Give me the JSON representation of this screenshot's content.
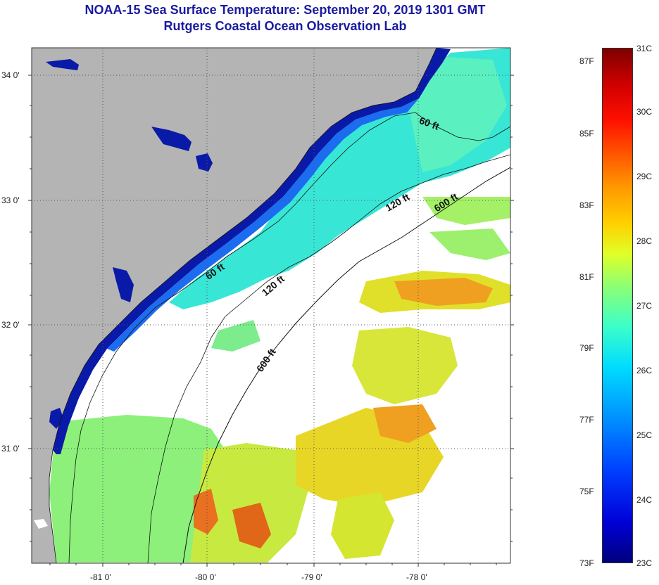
{
  "title": {
    "line1": "NOAA-15 Sea Surface Temperature:  September 20, 2019 1301 GMT",
    "line2": "Rutgers Coastal Ocean Observation Lab"
  },
  "map": {
    "lat_labels": [
      "34 0'",
      "33 0'",
      "32 0'",
      "31 0'"
    ],
    "lon_labels": [
      "-81 0'",
      "-80 0'",
      "-79 0'",
      "-78 0'"
    ],
    "contour_labels": [
      "60 ft",
      "60 ft",
      "120 ft",
      "120 ft",
      "600 ft",
      "600 ft"
    ],
    "colors": {
      "land": "#b4b4b4",
      "cold_nearshore": "#0a1aa8",
      "cool": "#30e0e0",
      "mid": "#8cf07a",
      "warm": "#e8e41e",
      "hot": "#f0901e",
      "hottest": "#e0621a",
      "cloud": "#ffffff"
    }
  },
  "colorbar": {
    "celsius_labels": [
      "31C",
      "30C",
      "29C",
      "28C",
      "27C",
      "26C",
      "25C",
      "24C",
      "23C"
    ],
    "fahrenheit_labels": [
      "87F",
      "85F",
      "83F",
      "81F",
      "79F",
      "77F",
      "75F",
      "73F"
    ]
  }
}
